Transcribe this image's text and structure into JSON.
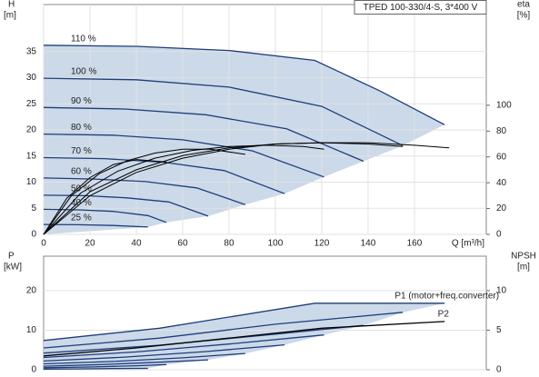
{
  "chart_data": [
    {
      "type": "line",
      "title": "TPED 100-330/4-S, 3*400 V",
      "ylabel": "H",
      "yunit": "[m]",
      "y2label": "eta",
      "y2unit": "[%]",
      "xlabel": "Q [m³/h]",
      "xlim": [
        0,
        191
      ],
      "xticks": [
        0,
        20,
        40,
        60,
        80,
        100,
        120,
        140,
        160
      ],
      "ylim": [
        0,
        44
      ],
      "yticks": [
        0,
        5,
        10,
        15,
        20,
        25,
        30,
        35
      ],
      "y2lim": [
        0,
        178
      ],
      "y2ticks": [
        0,
        20,
        40,
        60,
        80,
        100
      ],
      "grid": true,
      "fill_color": "#cbd9e9",
      "series": [
        {
          "name": "110 %",
          "color": "#1f3d7a",
          "x": [
            0,
            40,
            80,
            117,
            145,
            173
          ],
          "values": [
            36.2,
            36,
            35.2,
            33.3,
            27.5,
            21
          ]
        },
        {
          "name": "100 %",
          "color": "#1f3d7a",
          "x": [
            0,
            40,
            80,
            120,
            155
          ],
          "values": [
            29.9,
            29.6,
            28.2,
            24.5,
            17
          ]
        },
        {
          "name": "90 %",
          "color": "#1f3d7a",
          "x": [
            0,
            35,
            70,
            105,
            138
          ],
          "values": [
            24.3,
            24,
            22.9,
            20.2,
            14
          ]
        },
        {
          "name": "80 %",
          "color": "#1f3d7a",
          "x": [
            0,
            30,
            60,
            90,
            121
          ],
          "values": [
            19.2,
            19,
            18.1,
            16,
            11
          ]
        },
        {
          "name": "70 %",
          "color": "#1f3d7a",
          "x": [
            0,
            26,
            52,
            78,
            104
          ],
          "values": [
            14.7,
            14.5,
            13.8,
            12.2,
            7.8
          ]
        },
        {
          "name": "60 %",
          "color": "#1f3d7a",
          "x": [
            0,
            22,
            44,
            66,
            87
          ],
          "values": [
            10.8,
            10.6,
            10.1,
            8.9,
            5.7
          ]
        },
        {
          "name": "50 %",
          "color": "#1f3d7a",
          "x": [
            0,
            18,
            36,
            54,
            71
          ],
          "values": [
            7.5,
            7.4,
            7,
            6.2,
            3.5
          ]
        },
        {
          "name": "40 %",
          "color": "#1f3d7a",
          "x": [
            0,
            15,
            30,
            45,
            53
          ],
          "values": [
            4.8,
            4.7,
            4.4,
            3.6,
            2.3
          ]
        },
        {
          "name": "25 %",
          "color": "#1f3d7a",
          "x": [
            0,
            15,
            30,
            45
          ],
          "values": [
            1.9,
            1.85,
            1.7,
            1.4
          ]
        },
        {
          "color": "#000000",
          "axis": "y2",
          "x": [
            0,
            20,
            40,
            60,
            80,
            100,
            120,
            140,
            160,
            175
          ],
          "values": [
            0,
            30,
            48,
            59,
            66,
            70,
            71,
            71,
            69,
            67
          ]
        },
        {
          "color": "#000000",
          "axis": "y2",
          "x": [
            0,
            20,
            40,
            60,
            80,
            100,
            120,
            140,
            155
          ],
          "values": [
            0,
            33,
            50,
            61,
            67,
            70,
            71,
            70,
            68
          ]
        },
        {
          "color": "#000000",
          "axis": "y2",
          "x": [
            0,
            16,
            32,
            48,
            64,
            80,
            96,
            112,
            121
          ],
          "values": [
            0,
            32,
            49,
            59,
            65,
            68,
            69,
            68,
            66
          ]
        },
        {
          "color": "#000000",
          "axis": "y2",
          "x": [
            0,
            12,
            24,
            36,
            48,
            60,
            72,
            87
          ],
          "values": [
            0,
            30,
            47,
            57,
            63,
            66,
            66,
            62
          ]
        },
        {
          "color": "#000000",
          "axis": "y2",
          "x": [
            0,
            10,
            20,
            30,
            40,
            53
          ],
          "values": [
            0,
            28,
            44,
            54,
            58,
            56
          ]
        }
      ]
    },
    {
      "type": "line",
      "ylabel": "P",
      "yunit": "[kW]",
      "y2label": "NPSH",
      "y2unit": "[m]",
      "xlim": [
        0,
        191
      ],
      "ylim": [
        0,
        28.7
      ],
      "yticks": [
        0,
        10,
        20
      ],
      "y2lim": [
        0,
        14.35
      ],
      "y2ticks": [
        0,
        5,
        10
      ],
      "grid": true,
      "fill_color": "#cbd9e9",
      "series": [
        {
          "name": "P1 (motor+freq.converter)",
          "color": "#1f3d7a",
          "x": [
            0,
            50,
            117,
            173
          ],
          "values": [
            7.4,
            10.5,
            16.8,
            16.8
          ]
        },
        {
          "color": "#1f3d7a",
          "x": [
            0,
            50,
            100,
            155
          ],
          "values": [
            5.5,
            8,
            11.5,
            14.5
          ]
        },
        {
          "color": "#1f3d7a",
          "x": [
            0,
            50,
            100,
            138
          ],
          "values": [
            4.2,
            6.2,
            9,
            11.2
          ]
        },
        {
          "color": "#1f3d7a",
          "x": [
            0,
            40,
            80,
            121
          ],
          "values": [
            3.1,
            4.5,
            6.5,
            8.8
          ]
        },
        {
          "color": "#1f3d7a",
          "x": [
            0,
            35,
            70,
            104
          ],
          "values": [
            2.2,
            3.2,
            4.6,
            6.3
          ]
        },
        {
          "color": "#1f3d7a",
          "x": [
            0,
            30,
            60,
            87
          ],
          "values": [
            1.5,
            2.1,
            3,
            4.1
          ]
        },
        {
          "color": "#1f3d7a",
          "x": [
            0,
            25,
            50,
            71
          ],
          "values": [
            0.9,
            1.3,
            1.9,
            2.5
          ]
        },
        {
          "color": "#1f3d7a",
          "x": [
            0,
            20,
            40,
            53
          ],
          "values": [
            0.5,
            0.7,
            1,
            1.3
          ]
        },
        {
          "color": "#1f3d7a",
          "x": [
            0,
            15,
            30,
            45
          ],
          "values": [
            0.15,
            0.2,
            0.3,
            0.35
          ]
        },
        {
          "name": "P2",
          "color": "#000000",
          "x": [
            0,
            40,
            80,
            120,
            173
          ],
          "values": [
            3.5,
            5.5,
            8,
            10.5,
            12.2
          ]
        }
      ]
    }
  ]
}
